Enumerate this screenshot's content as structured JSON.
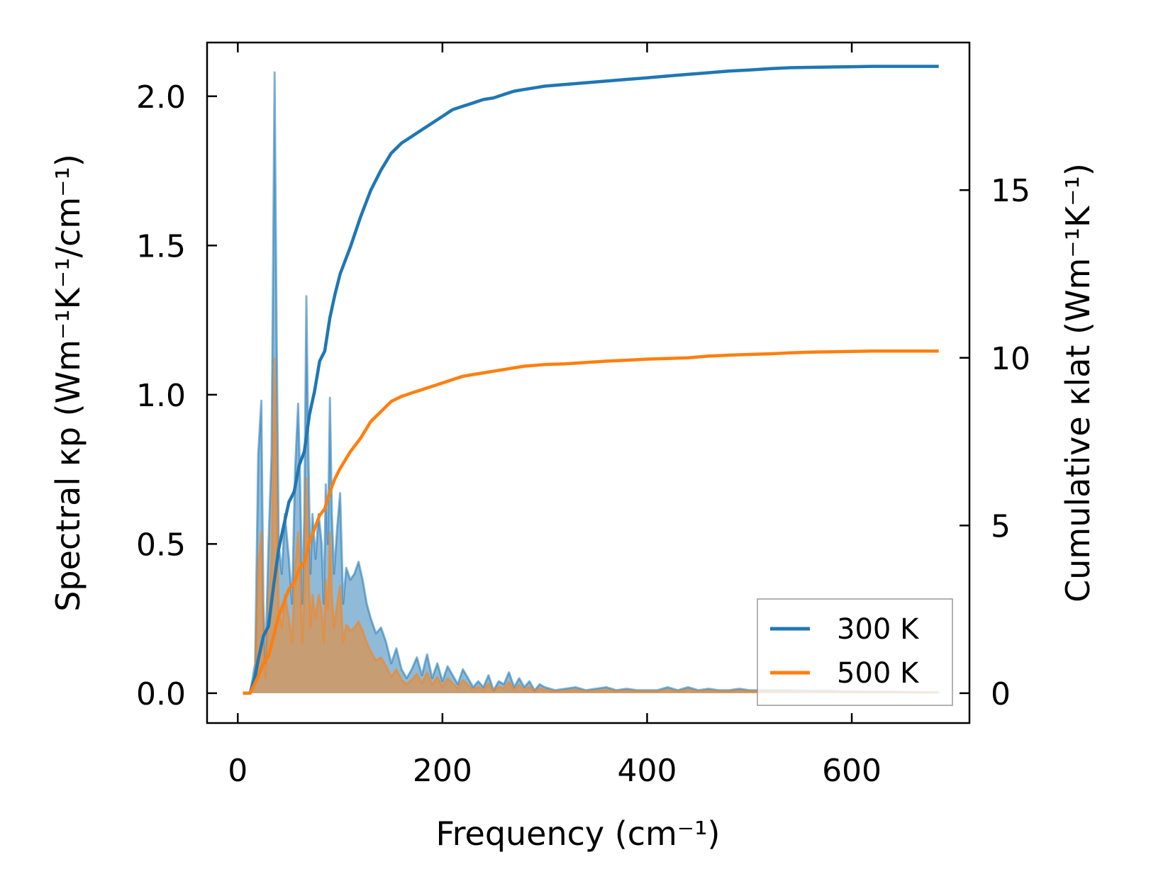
{
  "chart_data": {
    "type": "line",
    "xlabel": "Frequency (cm⁻¹)",
    "ylabel_left": "Spectral κp (Wm⁻¹K⁻¹/cm⁻¹)",
    "ylabel_right": "Cumulative κlat (Wm⁻¹K⁻¹)",
    "xlim": [
      -30,
      715
    ],
    "ylim_left": [
      -0.1,
      2.18
    ],
    "ylim_right": [
      -0.89,
      19.4
    ],
    "x_ticks": [
      0,
      200,
      400,
      600
    ],
    "y_left_ticks": [
      0.0,
      0.5,
      1.0,
      1.5,
      2.0
    ],
    "y_right_ticks": [
      0,
      5,
      10,
      15
    ],
    "y_left_tick_labels": [
      "0.0",
      "0.5",
      "1.0",
      "1.5",
      "2.0"
    ],
    "y_right_tick_labels": [
      "0",
      "5",
      "10",
      "15"
    ],
    "grid": false,
    "legend_position": "bottom-right",
    "colors": {
      "300 K": "#1f77b4",
      "500 K": "#ff7f0e"
    },
    "series": [
      {
        "name": "300 K",
        "spectral": {
          "x": [
            5,
            12,
            17,
            20,
            23,
            25,
            27,
            30,
            33,
            36,
            38,
            40,
            43,
            46,
            50,
            53,
            56,
            59,
            61,
            63,
            65,
            67,
            69,
            71,
            73,
            76,
            79,
            82,
            84,
            86,
            88,
            90,
            92,
            94,
            97,
            100,
            103,
            106,
            110,
            114,
            118,
            122,
            126,
            130,
            135,
            140,
            145,
            150,
            155,
            160,
            165,
            170,
            175,
            180,
            185,
            190,
            195,
            200,
            205,
            210,
            215,
            220,
            225,
            230,
            235,
            240,
            245,
            250,
            255,
            260,
            265,
            270,
            275,
            280,
            285,
            290,
            295,
            300,
            310,
            320,
            330,
            340,
            350,
            360,
            370,
            380,
            390,
            400,
            410,
            420,
            430,
            440,
            450,
            460,
            470,
            480,
            490,
            500,
            520,
            540,
            560,
            580,
            600,
            620,
            640,
            660,
            685
          ],
          "values": [
            0.0,
            0.0,
            0.1,
            0.8,
            0.98,
            0.3,
            0.1,
            0.5,
            0.8,
            2.08,
            1.2,
            0.5,
            0.4,
            0.6,
            0.45,
            0.3,
            0.75,
            0.97,
            0.7,
            0.3,
            0.6,
            1.33,
            0.8,
            0.4,
            0.6,
            0.45,
            0.6,
            0.5,
            0.3,
            0.7,
            0.5,
            0.99,
            0.6,
            0.4,
            0.55,
            0.67,
            0.3,
            0.42,
            0.38,
            0.4,
            0.44,
            0.38,
            0.3,
            0.25,
            0.2,
            0.22,
            0.17,
            0.1,
            0.15,
            0.08,
            0.05,
            0.08,
            0.12,
            0.06,
            0.13,
            0.05,
            0.1,
            0.04,
            0.09,
            0.06,
            0.03,
            0.08,
            0.05,
            0.02,
            0.04,
            0.02,
            0.06,
            0.01,
            0.04,
            0.03,
            0.07,
            0.02,
            0.05,
            0.02,
            0.04,
            0.01,
            0.03,
            0.02,
            0.01,
            0.015,
            0.02,
            0.01,
            0.015,
            0.02,
            0.01,
            0.015,
            0.01,
            0.01,
            0.01,
            0.02,
            0.01,
            0.02,
            0.01,
            0.015,
            0.01,
            0.01,
            0.015,
            0.01,
            0.01,
            0.01,
            0.008,
            0.008,
            0.006,
            0.005,
            0.005,
            0.004,
            0.003
          ]
        },
        "cumulative": {
          "x": [
            5,
            12,
            17,
            20,
            25,
            30,
            35,
            40,
            45,
            50,
            55,
            60,
            65,
            70,
            75,
            80,
            85,
            90,
            95,
            100,
            110,
            120,
            130,
            140,
            150,
            160,
            170,
            180,
            190,
            200,
            210,
            220,
            230,
            240,
            250,
            260,
            270,
            280,
            300,
            320,
            340,
            360,
            380,
            400,
            420,
            440,
            460,
            480,
            500,
            520,
            540,
            560,
            580,
            600,
            620,
            640,
            660,
            685
          ],
          "values": [
            0.0,
            0.0,
            0.5,
            1.0,
            1.7,
            2.0,
            3.2,
            4.3,
            5.0,
            5.7,
            6.0,
            6.8,
            7.2,
            8.3,
            9.0,
            9.9,
            10.2,
            11.2,
            11.9,
            12.5,
            13.3,
            14.2,
            15.0,
            15.6,
            16.1,
            16.4,
            16.6,
            16.8,
            17.0,
            17.2,
            17.4,
            17.5,
            17.6,
            17.7,
            17.75,
            17.85,
            17.95,
            18.0,
            18.1,
            18.15,
            18.2,
            18.25,
            18.3,
            18.35,
            18.4,
            18.45,
            18.5,
            18.55,
            18.58,
            18.62,
            18.65,
            18.66,
            18.67,
            18.68,
            18.69,
            18.69,
            18.69,
            18.69
          ]
        }
      },
      {
        "name": "500 K",
        "spectral": {
          "x": [
            5,
            12,
            17,
            20,
            23,
            25,
            27,
            30,
            33,
            36,
            38,
            40,
            43,
            46,
            50,
            53,
            56,
            59,
            61,
            63,
            65,
            67,
            69,
            71,
            73,
            76,
            79,
            82,
            84,
            86,
            88,
            90,
            92,
            94,
            97,
            100,
            103,
            106,
            110,
            114,
            118,
            122,
            126,
            130,
            135,
            140,
            145,
            150,
            155,
            160,
            165,
            170,
            175,
            180,
            185,
            190,
            195,
            200,
            205,
            210,
            215,
            220,
            225,
            230,
            235,
            240,
            245,
            250,
            255,
            260,
            265,
            270,
            275,
            280,
            285,
            290,
            295,
            300,
            310,
            320,
            330,
            340,
            350,
            360,
            370,
            380,
            390,
            400,
            410,
            420,
            430,
            440,
            450,
            460,
            470,
            480,
            490,
            500,
            520,
            540,
            560,
            580,
            600,
            620,
            640,
            660,
            685
          ],
          "values": [
            0.0,
            0.0,
            0.05,
            0.42,
            0.54,
            0.15,
            0.05,
            0.28,
            0.45,
            1.12,
            0.65,
            0.28,
            0.22,
            0.33,
            0.25,
            0.17,
            0.42,
            0.54,
            0.39,
            0.17,
            0.33,
            0.72,
            0.44,
            0.22,
            0.33,
            0.25,
            0.33,
            0.28,
            0.17,
            0.38,
            0.28,
            0.54,
            0.33,
            0.22,
            0.3,
            0.36,
            0.17,
            0.23,
            0.21,
            0.22,
            0.24,
            0.21,
            0.17,
            0.14,
            0.11,
            0.12,
            0.09,
            0.055,
            0.08,
            0.045,
            0.03,
            0.045,
            0.065,
            0.033,
            0.07,
            0.028,
            0.055,
            0.022,
            0.05,
            0.033,
            0.017,
            0.044,
            0.028,
            0.011,
            0.022,
            0.011,
            0.033,
            0.006,
            0.022,
            0.017,
            0.038,
            0.011,
            0.028,
            0.011,
            0.022,
            0.006,
            0.017,
            0.011,
            0.006,
            0.008,
            0.011,
            0.006,
            0.008,
            0.011,
            0.006,
            0.008,
            0.006,
            0.006,
            0.006,
            0.011,
            0.006,
            0.011,
            0.006,
            0.008,
            0.006,
            0.006,
            0.008,
            0.006,
            0.006,
            0.006,
            0.004,
            0.004,
            0.003,
            0.003,
            0.003,
            0.002,
            0.002
          ]
        },
        "cumulative": {
          "x": [
            5,
            12,
            17,
            20,
            25,
            30,
            35,
            40,
            45,
            50,
            55,
            60,
            65,
            70,
            75,
            80,
            85,
            90,
            95,
            100,
            110,
            120,
            130,
            140,
            150,
            160,
            170,
            180,
            190,
            200,
            210,
            220,
            230,
            240,
            250,
            260,
            270,
            280,
            300,
            320,
            340,
            360,
            380,
            400,
            420,
            440,
            460,
            480,
            500,
            520,
            540,
            560,
            580,
            600,
            620,
            640,
            660,
            685
          ],
          "values": [
            0.0,
            0.0,
            0.3,
            0.5,
            0.9,
            1.1,
            1.7,
            2.3,
            2.7,
            3.1,
            3.3,
            3.7,
            3.9,
            4.5,
            4.9,
            5.3,
            5.5,
            6.0,
            6.4,
            6.7,
            7.2,
            7.6,
            8.1,
            8.4,
            8.7,
            8.85,
            8.95,
            9.05,
            9.15,
            9.25,
            9.35,
            9.45,
            9.5,
            9.55,
            9.6,
            9.65,
            9.7,
            9.75,
            9.8,
            9.82,
            9.86,
            9.9,
            9.93,
            9.96,
            9.98,
            10.0,
            10.05,
            10.08,
            10.1,
            10.12,
            10.15,
            10.17,
            10.18,
            10.19,
            10.2,
            10.2,
            10.2,
            10.2
          ]
        }
      }
    ]
  }
}
